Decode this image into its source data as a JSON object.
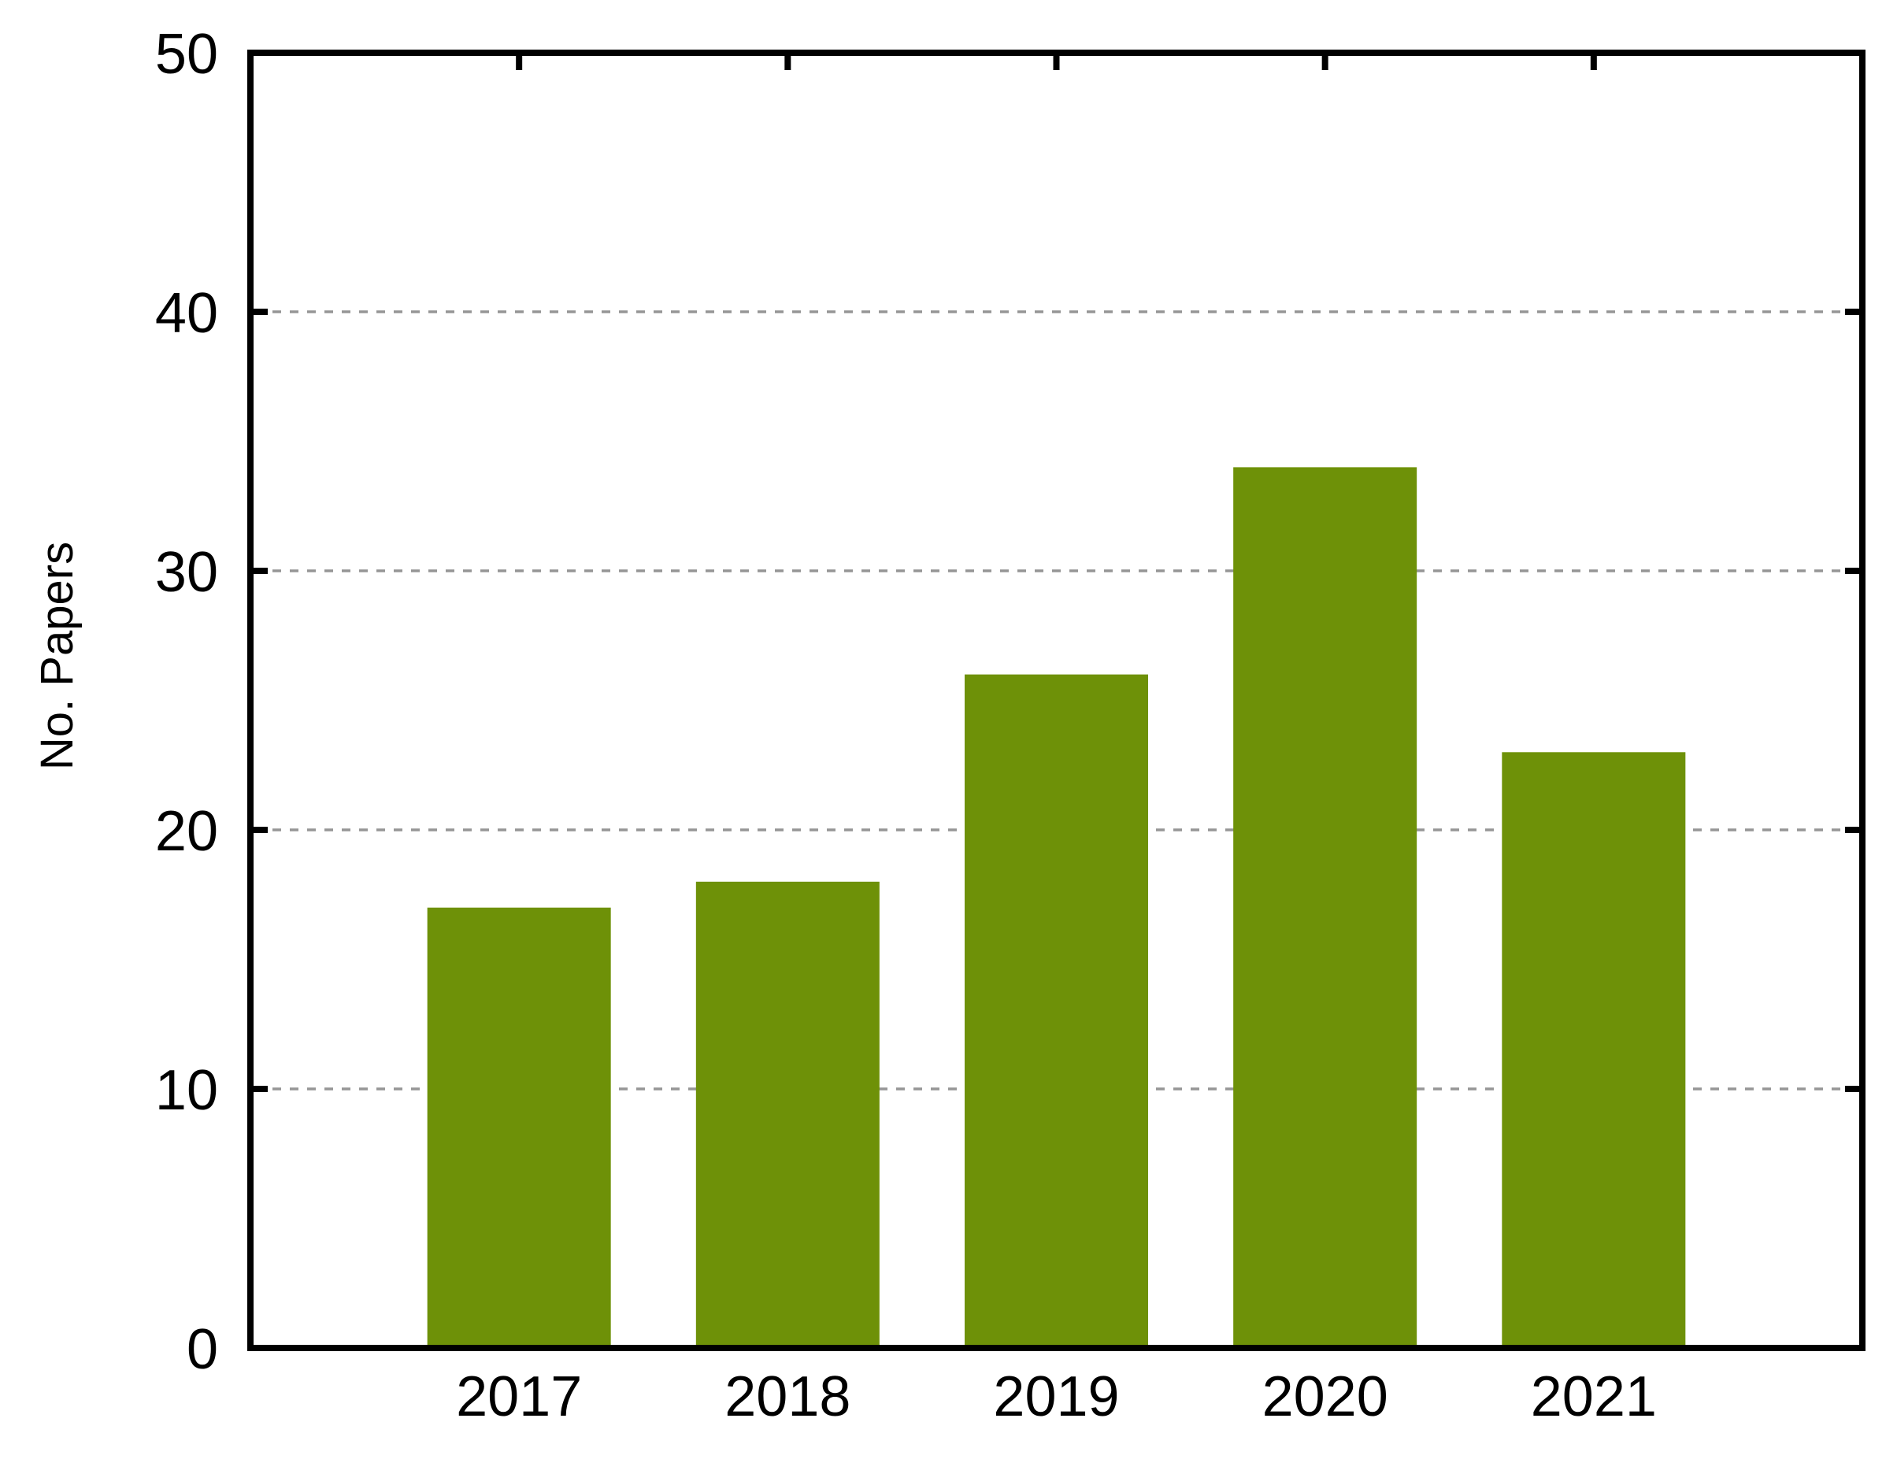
{
  "figure": {
    "background": "#ffffff"
  },
  "chart_data": {
    "type": "bar",
    "title": "",
    "categories": [
      "2017",
      "2018",
      "2019",
      "2020",
      "2021"
    ],
    "values": [
      17,
      18,
      26,
      34,
      23
    ],
    "xlabel": "",
    "ylabel": "No. Papers",
    "ylim": [
      0,
      50
    ],
    "yticks": [
      0,
      10,
      20,
      30,
      40,
      50
    ],
    "gridlines": [
      10,
      20,
      30,
      40
    ],
    "grid_style": "dashed",
    "grid_on": true,
    "legend_position": "none",
    "bar_color": "#6e9108",
    "grid_color": "#969696",
    "axis_color": "#000000",
    "text_color": "#000000"
  }
}
